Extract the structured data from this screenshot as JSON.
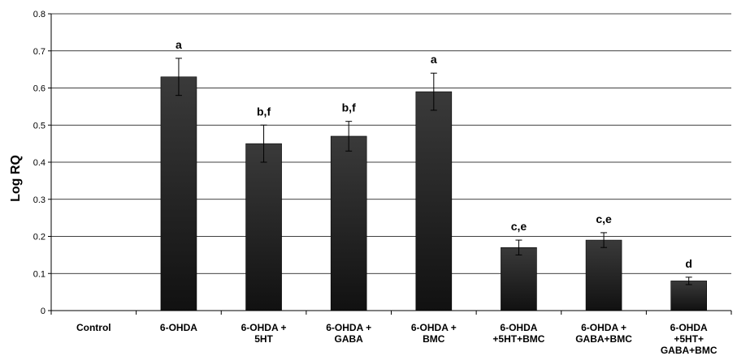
{
  "chart_data": {
    "type": "bar",
    "title": "",
    "xlabel": "",
    "ylabel": "Log RQ",
    "ylim": [
      0,
      0.8
    ],
    "yticks": [
      "0",
      "0.1",
      "0.2",
      "0.3",
      "0.4",
      "0.5",
      "0.6",
      "0.7",
      "0.8"
    ],
    "grid": true,
    "legend": "none",
    "bar_color": "#222222",
    "categories": [
      [
        "Control"
      ],
      [
        "6-OHDA"
      ],
      [
        "6-OHDA +",
        "5HT"
      ],
      [
        "6-OHDA +",
        "GABA"
      ],
      [
        "6-OHDA +",
        "BMC"
      ],
      [
        "6-OHDA",
        "+5HT+BMC"
      ],
      [
        "6-OHDA +",
        "GABA+BMC"
      ],
      [
        "6-OHDA",
        "+5HT+",
        "GABA+BMC"
      ]
    ],
    "values": [
      0,
      0.63,
      0.45,
      0.47,
      0.59,
      0.17,
      0.19,
      0.08
    ],
    "errors": [
      0,
      0.05,
      0.05,
      0.04,
      0.05,
      0.02,
      0.02,
      0.01
    ],
    "significance": [
      "",
      "a",
      "b,f",
      "b,f",
      "a",
      "c,e",
      "c,e",
      "d"
    ]
  }
}
